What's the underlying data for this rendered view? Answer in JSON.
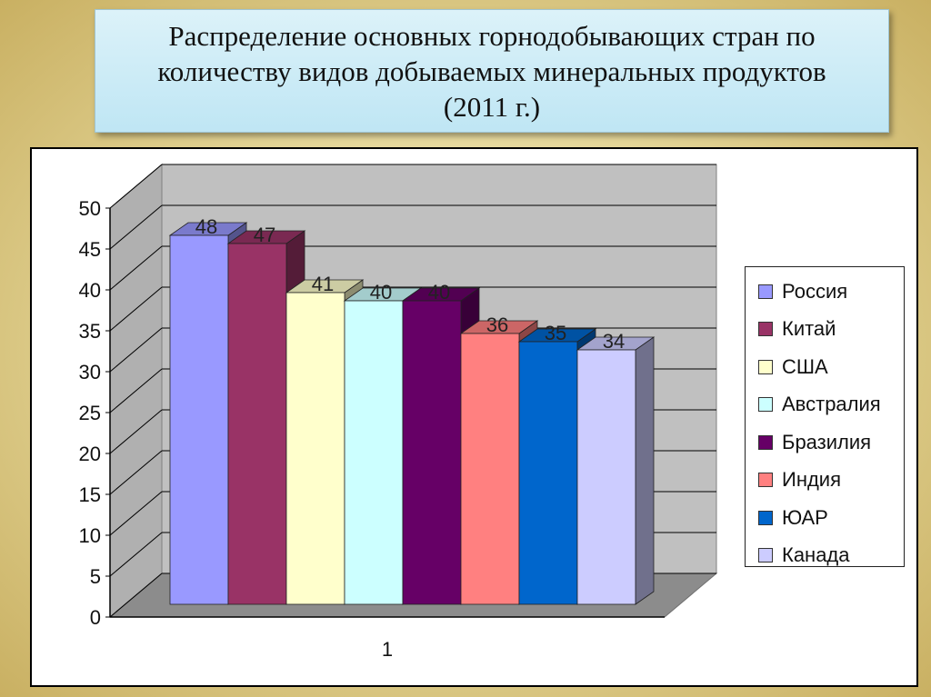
{
  "title": "Распределение основных горнодобывающих стран по\nколичеству видов добываемых минеральных продуктов\n(2011 г.)",
  "chart_data": {
    "type": "bar",
    "title": "Распределение основных горнодобывающих стран по количеству видов добываемых минеральных продуктов (2011 г.)",
    "categories": [
      "1"
    ],
    "series": [
      {
        "name": "Россия",
        "values": [
          48
        ],
        "color": "#9999ff"
      },
      {
        "name": "Китай",
        "values": [
          47
        ],
        "color": "#993366"
      },
      {
        "name": "США",
        "values": [
          41
        ],
        "color": "#ffffcc"
      },
      {
        "name": "Австралия",
        "values": [
          40
        ],
        "color": "#ccffff"
      },
      {
        "name": "Бразилия",
        "values": [
          40
        ],
        "color": "#660066"
      },
      {
        "name": "Индия",
        "values": [
          36
        ],
        "color": "#ff8080"
      },
      {
        "name": "ЮАР",
        "values": [
          35
        ],
        "color": "#0066cc"
      },
      {
        "name": "Канада",
        "values": [
          34
        ],
        "color": "#ccccff"
      }
    ],
    "ylim": [
      0,
      50
    ],
    "yticks": [
      "0",
      "5",
      "10",
      "15",
      "20",
      "25",
      "30",
      "35",
      "40",
      "45",
      "50"
    ],
    "grid": true,
    "legend_position": "right"
  }
}
